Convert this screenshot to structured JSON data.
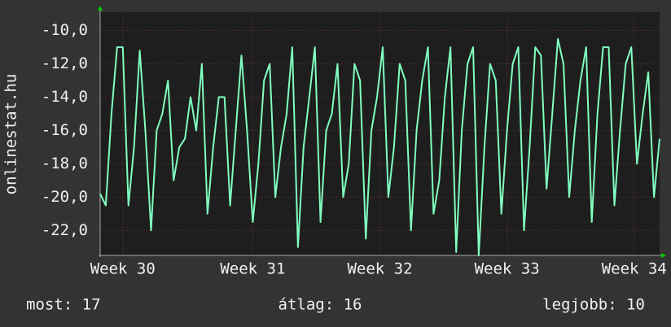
{
  "chart_data": {
    "type": "line",
    "y_label": "onlinestat.hu",
    "series": [
      {
        "color": "#80ffbf",
        "values": [
          -19.8,
          -20.5,
          -15,
          -11,
          -11,
          -20.5,
          -17,
          -11.2,
          -16,
          -22,
          -16,
          -15,
          -13,
          -19,
          -17,
          -16.5,
          -14,
          -16,
          -12,
          -21,
          -17,
          -14,
          -14,
          -20.5,
          -16,
          -11.5,
          -16,
          -21.5,
          -18,
          -13,
          -12,
          -20,
          -17,
          -15,
          -11,
          -23,
          -17,
          -14,
          -11,
          -21.5,
          -16,
          -15,
          -12,
          -20,
          -18,
          -12,
          -13,
          -22.5,
          -16,
          -14,
          -11,
          -20,
          -17,
          -12,
          -13,
          -22,
          -16,
          -13,
          -11,
          -21,
          -19,
          -14,
          -11,
          -23.3,
          -16,
          -12,
          -11,
          -23.5,
          -17,
          -12,
          -13,
          -21,
          -16,
          -12,
          -11,
          -22,
          -17,
          -11,
          -11.5,
          -19.5,
          -15,
          -10.5,
          -12,
          -20,
          -16,
          -13,
          -11,
          -21.5,
          -15,
          -11,
          -11,
          -20.5,
          -16,
          -12,
          -11,
          -18,
          -15,
          -12.5,
          -20,
          -16.5
        ]
      }
    ],
    "xlim": [
      0,
      99
    ],
    "xticks": [
      {
        "value": 4,
        "label": "Week 30"
      },
      {
        "value": 27,
        "label": "Week 31"
      },
      {
        "value": 49.5,
        "label": "Week 32"
      },
      {
        "value": 72,
        "label": "Week 33"
      },
      {
        "value": 94.5,
        "label": "Week 34"
      }
    ],
    "ylim": [
      -23.5,
      -8.9
    ],
    "yticks": [
      {
        "value": -10,
        "label": "-10,0"
      },
      {
        "value": -12,
        "label": "-12,0"
      },
      {
        "value": -14,
        "label": "-14,0"
      },
      {
        "value": -16,
        "label": "-16,0"
      },
      {
        "value": -18,
        "label": "-18,0"
      },
      {
        "value": -20,
        "label": "-20,0"
      },
      {
        "value": -22,
        "label": "-22,0"
      }
    ],
    "grid": true,
    "footer": [
      "most: 17",
      "átlag: 16",
      "legjobb: 10"
    ]
  }
}
